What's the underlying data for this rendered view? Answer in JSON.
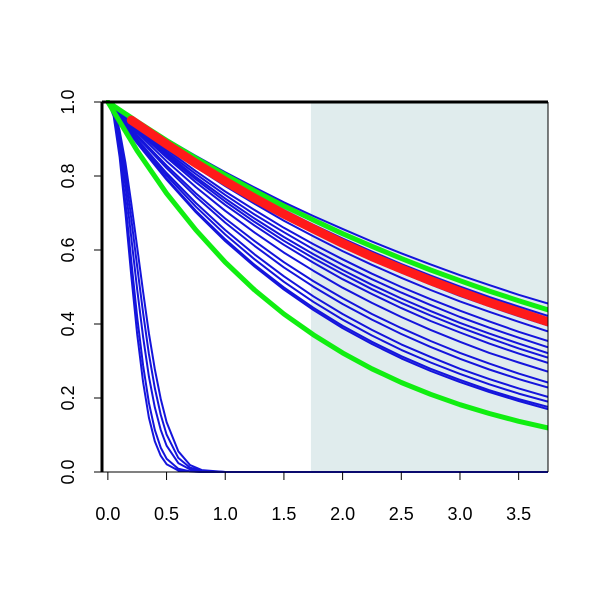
{
  "chart_data": {
    "type": "line",
    "title": "",
    "xlabel": "",
    "ylabel": "",
    "xlim": [
      -0.05,
      3.75
    ],
    "ylim": [
      0,
      1
    ],
    "grid": false,
    "x_ticks": [
      "0.0",
      "0.5",
      "1.0",
      "1.5",
      "2.0",
      "2.5",
      "3.0",
      "3.5"
    ],
    "y_ticks": [
      "0.0",
      "0.2",
      "0.4",
      "0.6",
      "0.8",
      "1.0"
    ],
    "shaded_region": {
      "x_from": 1.73,
      "x_to": 3.75,
      "color": "#e0eced"
    },
    "colors": {
      "blue": "#1414dc",
      "red": "#ff1a1a",
      "green": "#11ee11"
    },
    "x": [
      0.0,
      0.25,
      0.5,
      0.75,
      1.0,
      1.25,
      1.5,
      1.75,
      2.0,
      2.25,
      2.5,
      2.75,
      3.0,
      3.25,
      3.5,
      3.75
    ],
    "series": [
      {
        "color": "blue",
        "values": [
          1.0,
          0.949,
          0.9,
          0.854,
          0.81,
          0.769,
          0.729,
          0.692,
          0.657,
          0.623,
          0.591,
          0.561,
          0.532,
          0.505,
          0.479,
          0.455
        ]
      },
      {
        "color": "blue",
        "values": [
          1.0,
          0.944,
          0.891,
          0.841,
          0.794,
          0.75,
          0.708,
          0.668,
          0.631,
          0.596,
          0.562,
          0.531,
          0.501,
          0.473,
          0.447,
          0.422
        ]
      },
      {
        "color": "blue",
        "values": [
          1.0,
          0.943,
          0.888,
          0.838,
          0.79,
          0.744,
          0.702,
          0.661,
          0.624,
          0.588,
          0.554,
          0.522,
          0.492,
          0.464,
          0.437,
          0.412
        ]
      },
      {
        "color": "blue",
        "values": [
          1.0,
          0.942,
          0.887,
          0.835,
          0.786,
          0.74,
          0.697,
          0.657,
          0.618,
          0.582,
          0.548,
          0.517,
          0.486,
          0.458,
          0.431,
          0.406
        ]
      },
      {
        "color": "blue",
        "values": [
          1.0,
          0.941,
          0.886,
          0.834,
          0.784,
          0.738,
          0.695,
          0.654,
          0.615,
          0.579,
          0.545,
          0.513,
          0.483,
          0.454,
          0.428,
          0.402
        ]
      },
      {
        "color": "blue",
        "values": [
          1.0,
          0.94,
          0.884,
          0.831,
          0.781,
          0.734,
          0.69,
          0.649,
          0.61,
          0.573,
          0.539,
          0.507,
          0.476,
          0.448,
          0.421,
          0.396
        ]
      },
      {
        "color": "blue",
        "values": [
          1.0,
          0.938,
          0.879,
          0.824,
          0.773,
          0.725,
          0.679,
          0.637,
          0.597,
          0.56,
          0.525,
          0.492,
          0.461,
          0.433,
          0.406,
          0.38
        ]
      },
      {
        "color": "blue",
        "values": [
          1.0,
          0.933,
          0.871,
          0.813,
          0.758,
          0.708,
          0.66,
          0.616,
          0.575,
          0.536,
          0.5,
          0.467,
          0.436,
          0.407,
          0.379,
          0.354
        ]
      },
      {
        "color": "blue",
        "values": [
          1.0,
          0.93,
          0.865,
          0.805,
          0.749,
          0.696,
          0.648,
          0.602,
          0.56,
          0.521,
          0.485,
          0.451,
          0.419,
          0.39,
          0.363,
          0.337
        ]
      },
      {
        "color": "blue",
        "values": [
          1.0,
          0.927,
          0.86,
          0.797,
          0.739,
          0.685,
          0.635,
          0.589,
          0.546,
          0.506,
          0.469,
          0.435,
          0.403,
          0.374,
          0.347,
          0.321
        ]
      },
      {
        "color": "blue",
        "values": [
          1.0,
          0.925,
          0.855,
          0.791,
          0.731,
          0.676,
          0.625,
          0.578,
          0.535,
          0.494,
          0.457,
          0.423,
          0.391,
          0.362,
          0.334,
          0.309
        ]
      },
      {
        "color": "blue",
        "values": [
          1.0,
          0.922,
          0.85,
          0.783,
          0.722,
          0.666,
          0.614,
          0.566,
          0.521,
          0.481,
          0.443,
          0.408,
          0.377,
          0.347,
          0.32,
          0.295
        ]
      },
      {
        "color": "blue",
        "values": [
          1.0,
          0.917,
          0.84,
          0.77,
          0.706,
          0.647,
          0.593,
          0.544,
          0.498,
          0.457,
          0.419,
          0.384,
          0.352,
          0.322,
          0.296,
          0.271
        ]
      },
      {
        "color": "blue",
        "values": [
          1.0,
          0.91,
          0.828,
          0.753,
          0.685,
          0.624,
          0.567,
          0.516,
          0.47,
          0.427,
          0.389,
          0.354,
          0.322,
          0.293,
          0.266,
          0.242
        ]
      },
      {
        "color": "blue",
        "values": [
          1.0,
          0.906,
          0.821,
          0.744,
          0.674,
          0.611,
          0.553,
          0.501,
          0.454,
          0.412,
          0.373,
          0.338,
          0.306,
          0.277,
          0.251,
          0.228
        ]
      },
      {
        "color": "blue",
        "values": [
          1.0,
          0.899,
          0.808,
          0.727,
          0.654,
          0.588,
          0.529,
          0.475,
          0.427,
          0.384,
          0.345,
          0.311,
          0.279,
          0.251,
          0.226,
          0.203
        ]
      },
      {
        "color": "blue",
        "values": [
          1.0,
          0.895,
          0.801,
          0.717,
          0.642,
          0.575,
          0.514,
          0.46,
          0.412,
          0.369,
          0.33,
          0.296,
          0.265,
          0.237,
          0.212,
          0.19
        ]
      },
      {
        "color": "blue",
        "values": [
          1.0,
          0.89,
          0.793,
          0.706,
          0.629,
          0.56,
          0.499,
          0.444,
          0.395,
          0.352,
          0.313,
          0.279,
          0.249,
          0.221,
          0.197,
          0.176
        ]
      },
      {
        "color": "blue",
        "values": [
          1.0,
          0.888,
          0.79,
          0.702,
          0.624,
          0.555,
          0.493,
          0.438,
          0.389,
          0.346,
          0.307,
          0.273,
          0.243,
          0.216,
          0.192,
          0.17
        ]
      },
      {
        "color": "blue",
        "x": [
          0.0,
          0.05,
          0.1,
          0.15,
          0.2,
          0.25,
          0.3,
          0.35,
          0.4,
          0.45,
          0.5,
          0.6,
          0.7,
          0.8,
          1.0,
          1.2,
          1.5,
          3.75
        ],
        "values": [
          1.0,
          0.98,
          0.923,
          0.835,
          0.726,
          0.607,
          0.487,
          0.375,
          0.278,
          0.198,
          0.135,
          0.056,
          0.019,
          0.005,
          0.0,
          0.0,
          0.0,
          0.0
        ]
      },
      {
        "color": "blue",
        "x": [
          0.0,
          0.05,
          0.1,
          0.15,
          0.2,
          0.25,
          0.3,
          0.35,
          0.4,
          0.45,
          0.5,
          0.6,
          0.7,
          0.8,
          1.0,
          1.2,
          1.5,
          3.75
        ],
        "values": [
          1.0,
          0.976,
          0.909,
          0.807,
          0.684,
          0.555,
          0.43,
          0.319,
          0.227,
          0.155,
          0.101,
          0.038,
          0.012,
          0.003,
          0.0,
          0.0,
          0.0,
          0.0
        ]
      },
      {
        "color": "blue",
        "x": [
          0.0,
          0.05,
          0.1,
          0.15,
          0.2,
          0.25,
          0.3,
          0.35,
          0.4,
          0.45,
          0.5,
          0.6,
          0.7,
          0.8,
          1.0,
          1.2,
          1.5,
          3.75
        ],
        "values": [
          1.0,
          0.971,
          0.891,
          0.772,
          0.633,
          0.493,
          0.365,
          0.258,
          0.175,
          0.114,
          0.071,
          0.024,
          0.007,
          0.002,
          0.0,
          0.0,
          0.0,
          0.0
        ]
      },
      {
        "color": "blue",
        "x": [
          0.0,
          0.05,
          0.1,
          0.15,
          0.2,
          0.25,
          0.3,
          0.35,
          0.4,
          0.45,
          0.5,
          0.6,
          0.7,
          0.8,
          1.0,
          1.2,
          1.5,
          3.75
        ],
        "values": [
          1.0,
          0.965,
          0.867,
          0.727,
          0.57,
          0.418,
          0.288,
          0.187,
          0.114,
          0.066,
          0.036,
          0.009,
          0.002,
          0.0,
          0.0,
          0.0,
          0.0,
          0.0
        ]
      },
      {
        "color": "blue",
        "x": [
          0.0,
          0.05,
          0.1,
          0.15,
          0.2,
          0.25,
          0.3,
          0.35,
          0.4,
          0.45,
          0.5,
          0.6,
          0.7,
          0.8,
          1.0,
          1.2,
          1.5,
          3.75
        ],
        "values": [
          1.0,
          0.961,
          0.852,
          0.698,
          0.53,
          0.372,
          0.243,
          0.147,
          0.083,
          0.044,
          0.021,
          0.004,
          0.001,
          0.0,
          0.0,
          0.0,
          0.0,
          0.0
        ]
      },
      {
        "color": "green",
        "width": 5,
        "values": [
          1.0,
          0.947,
          0.896,
          0.848,
          0.803,
          0.76,
          0.719,
          0.681,
          0.644,
          0.61,
          0.577,
          0.546,
          0.517,
          0.489,
          0.463,
          0.438
        ]
      },
      {
        "color": "green",
        "width": 5,
        "values": [
          1.0,
          0.868,
          0.753,
          0.654,
          0.567,
          0.492,
          0.427,
          0.371,
          0.322,
          0.279,
          0.242,
          0.21,
          0.182,
          0.158,
          0.137,
          0.119
        ]
      },
      {
        "color": "red",
        "width": 9,
        "x": [
          0.2,
          0.5,
          0.75,
          1.0,
          1.25,
          1.5,
          1.75,
          2.0,
          2.25,
          2.5,
          2.75,
          3.0,
          3.25,
          3.5,
          3.75
        ],
        "values": [
          0.951,
          0.886,
          0.834,
          0.786,
          0.74,
          0.697,
          0.657,
          0.618,
          0.582,
          0.549,
          0.517,
          0.487,
          0.458,
          0.432,
          0.406
        ]
      }
    ]
  }
}
